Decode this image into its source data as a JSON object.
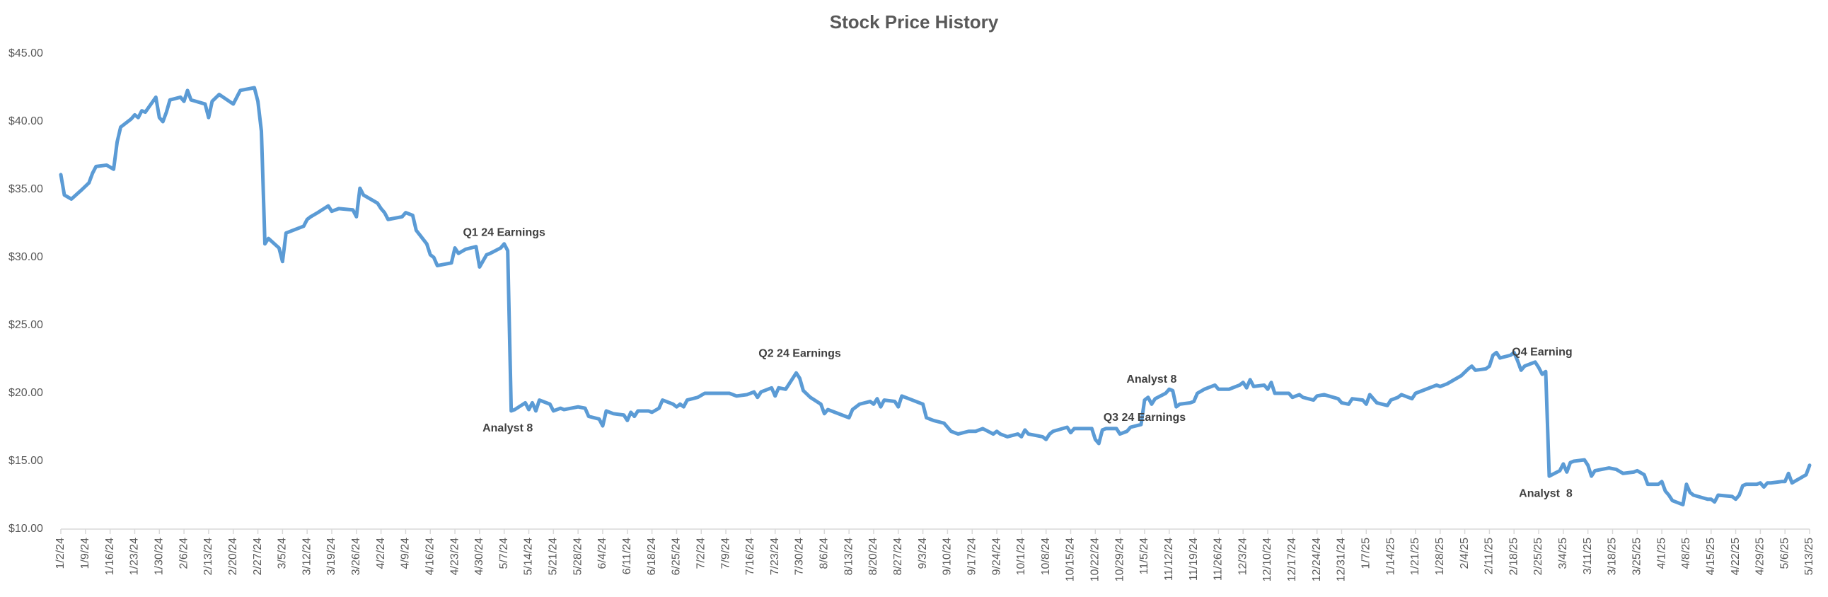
{
  "chart_data": {
    "type": "line",
    "title": "Stock Price History",
    "color": "#5b9bd5",
    "xlim": [
      "2024-01-02",
      "2025-05-13"
    ],
    "ylim": [
      10,
      45
    ],
    "yticks": [
      {
        "value": 10,
        "label": "$10.00"
      },
      {
        "value": 15,
        "label": "$15.00"
      },
      {
        "value": 20,
        "label": "$20.00"
      },
      {
        "value": 25,
        "label": "$25.00"
      },
      {
        "value": 30,
        "label": "$30.00"
      },
      {
        "value": 35,
        "label": "$35.00"
      },
      {
        "value": 40,
        "label": "$40.00"
      },
      {
        "value": 45,
        "label": "$45.00"
      }
    ],
    "xticks": [
      {
        "value": "2024-01-02",
        "label": "1/2/24"
      },
      {
        "value": "2024-01-09",
        "label": "1/9/24"
      },
      {
        "value": "2024-01-16",
        "label": "1/16/24"
      },
      {
        "value": "2024-01-23",
        "label": "1/23/24"
      },
      {
        "value": "2024-01-30",
        "label": "1/30/24"
      },
      {
        "value": "2024-02-06",
        "label": "2/6/24"
      },
      {
        "value": "2024-02-13",
        "label": "2/13/24"
      },
      {
        "value": "2024-02-20",
        "label": "2/20/24"
      },
      {
        "value": "2024-02-27",
        "label": "2/27/24"
      },
      {
        "value": "2024-03-05",
        "label": "3/5/24"
      },
      {
        "value": "2024-03-12",
        "label": "3/12/24"
      },
      {
        "value": "2024-03-19",
        "label": "3/19/24"
      },
      {
        "value": "2024-03-26",
        "label": "3/26/24"
      },
      {
        "value": "2024-04-02",
        "label": "4/2/24"
      },
      {
        "value": "2024-04-09",
        "label": "4/9/24"
      },
      {
        "value": "2024-04-16",
        "label": "4/16/24"
      },
      {
        "value": "2024-04-23",
        "label": "4/23/24"
      },
      {
        "value": "2024-04-30",
        "label": "4/30/24"
      },
      {
        "value": "2024-05-07",
        "label": "5/7/24"
      },
      {
        "value": "2024-05-14",
        "label": "5/14/24"
      },
      {
        "value": "2024-05-21",
        "label": "5/21/24"
      },
      {
        "value": "2024-05-28",
        "label": "5/28/24"
      },
      {
        "value": "2024-06-04",
        "label": "6/4/24"
      },
      {
        "value": "2024-06-11",
        "label": "6/11/24"
      },
      {
        "value": "2024-06-18",
        "label": "6/18/24"
      },
      {
        "value": "2024-06-25",
        "label": "6/25/24"
      },
      {
        "value": "2024-07-02",
        "label": "7/2/24"
      },
      {
        "value": "2024-07-09",
        "label": "7/9/24"
      },
      {
        "value": "2024-07-16",
        "label": "7/16/24"
      },
      {
        "value": "2024-07-23",
        "label": "7/23/24"
      },
      {
        "value": "2024-07-30",
        "label": "7/30/24"
      },
      {
        "value": "2024-08-06",
        "label": "8/6/24"
      },
      {
        "value": "2024-08-13",
        "label": "8/13/24"
      },
      {
        "value": "2024-08-20",
        "label": "8/20/24"
      },
      {
        "value": "2024-08-27",
        "label": "8/27/24"
      },
      {
        "value": "2024-09-03",
        "label": "9/3/24"
      },
      {
        "value": "2024-09-10",
        "label": "9/10/24"
      },
      {
        "value": "2024-09-17",
        "label": "9/17/24"
      },
      {
        "value": "2024-09-24",
        "label": "9/24/24"
      },
      {
        "value": "2024-10-01",
        "label": "10/1/24"
      },
      {
        "value": "2024-10-08",
        "label": "10/8/24"
      },
      {
        "value": "2024-10-15",
        "label": "10/15/24"
      },
      {
        "value": "2024-10-22",
        "label": "10/22/24"
      },
      {
        "value": "2024-10-29",
        "label": "10/29/24"
      },
      {
        "value": "2024-11-05",
        "label": "11/5/24"
      },
      {
        "value": "2024-11-12",
        "label": "11/12/24"
      },
      {
        "value": "2024-11-19",
        "label": "11/19/24"
      },
      {
        "value": "2024-11-26",
        "label": "11/26/24"
      },
      {
        "value": "2024-12-03",
        "label": "12/3/24"
      },
      {
        "value": "2024-12-10",
        "label": "12/10/24"
      },
      {
        "value": "2024-12-17",
        "label": "12/17/24"
      },
      {
        "value": "2024-12-24",
        "label": "12/24/24"
      },
      {
        "value": "2024-12-31",
        "label": "12/31/24"
      },
      {
        "value": "2025-01-07",
        "label": "1/7/25"
      },
      {
        "value": "2025-01-14",
        "label": "1/14/25"
      },
      {
        "value": "2025-01-21",
        "label": "1/21/25"
      },
      {
        "value": "2025-01-28",
        "label": "1/28/25"
      },
      {
        "value": "2025-02-04",
        "label": "2/4/25"
      },
      {
        "value": "2025-02-11",
        "label": "2/11/25"
      },
      {
        "value": "2025-02-18",
        "label": "2/18/25"
      },
      {
        "value": "2025-02-25",
        "label": "2/25/25"
      },
      {
        "value": "2025-03-04",
        "label": "3/4/25"
      },
      {
        "value": "2025-03-11",
        "label": "3/11/25"
      },
      {
        "value": "2025-03-18",
        "label": "3/18/25"
      },
      {
        "value": "2025-03-25",
        "label": "3/25/25"
      },
      {
        "value": "2025-04-01",
        "label": "4/1/25"
      },
      {
        "value": "2025-04-08",
        "label": "4/8/25"
      },
      {
        "value": "2025-04-15",
        "label": "4/15/25"
      },
      {
        "value": "2025-04-22",
        "label": "4/22/25"
      },
      {
        "value": "2025-04-29",
        "label": "4/29/25"
      },
      {
        "value": "2025-05-06",
        "label": "5/6/25"
      },
      {
        "value": "2025-05-13",
        "label": "5/13/25"
      }
    ],
    "x": [
      "2024-01-02",
      "2024-01-03",
      "2024-01-05",
      "2024-01-08",
      "2024-01-10",
      "2024-01-11",
      "2024-01-12",
      "2024-01-15",
      "2024-01-17",
      "2024-01-18",
      "2024-01-19",
      "2024-01-22",
      "2024-01-23",
      "2024-01-24",
      "2024-01-25",
      "2024-01-26",
      "2024-01-29",
      "2024-01-30",
      "2024-01-31",
      "2024-02-01",
      "2024-02-02",
      "2024-02-05",
      "2024-02-06",
      "2024-02-07",
      "2024-02-08",
      "2024-02-12",
      "2024-02-13",
      "2024-02-14",
      "2024-02-16",
      "2024-02-20",
      "2024-02-22",
      "2024-02-26",
      "2024-02-27",
      "2024-02-28",
      "2024-02-29",
      "2024-03-01",
      "2024-03-04",
      "2024-03-05",
      "2024-03-06",
      "2024-03-08",
      "2024-03-11",
      "2024-03-12",
      "2024-03-13",
      "2024-03-15",
      "2024-03-18",
      "2024-03-19",
      "2024-03-21",
      "2024-03-25",
      "2024-03-26",
      "2024-03-27",
      "2024-03-28",
      "2024-04-01",
      "2024-04-02",
      "2024-04-03",
      "2024-04-04",
      "2024-04-08",
      "2024-04-09",
      "2024-04-11",
      "2024-04-12",
      "2024-04-15",
      "2024-04-16",
      "2024-04-17",
      "2024-04-18",
      "2024-04-22",
      "2024-04-23",
      "2024-04-24",
      "2024-04-26",
      "2024-04-29",
      "2024-04-30",
      "2024-05-02",
      "2024-05-03",
      "2024-05-06",
      "2024-05-07",
      "2024-05-08",
      "2024-05-09",
      "2024-05-10",
      "2024-05-13",
      "2024-05-14",
      "2024-05-15",
      "2024-05-16",
      "2024-05-17",
      "2024-05-20",
      "2024-05-21",
      "2024-05-23",
      "2024-05-24",
      "2024-05-28",
      "2024-05-30",
      "2024-05-31",
      "2024-06-03",
      "2024-06-04",
      "2024-06-05",
      "2024-06-07",
      "2024-06-10",
      "2024-06-11",
      "2024-06-12",
      "2024-06-13",
      "2024-06-14",
      "2024-06-17",
      "2024-06-18",
      "2024-06-20",
      "2024-06-21",
      "2024-06-24",
      "2024-06-25",
      "2024-06-26",
      "2024-06-27",
      "2024-06-28",
      "2024-07-01",
      "2024-07-03",
      "2024-07-08",
      "2024-07-10",
      "2024-07-12",
      "2024-07-15",
      "2024-07-17",
      "2024-07-18",
      "2024-07-19",
      "2024-07-22",
      "2024-07-23",
      "2024-07-24",
      "2024-07-26",
      "2024-07-29",
      "2024-07-30",
      "2024-07-31",
      "2024-08-02",
      "2024-08-05",
      "2024-08-06",
      "2024-08-07",
      "2024-08-09",
      "2024-08-12",
      "2024-08-13",
      "2024-08-14",
      "2024-08-16",
      "2024-08-19",
      "2024-08-20",
      "2024-08-21",
      "2024-08-22",
      "2024-08-23",
      "2024-08-26",
      "2024-08-27",
      "2024-08-28",
      "2024-08-30",
      "2024-09-03",
      "2024-09-04",
      "2024-09-06",
      "2024-09-09",
      "2024-09-10",
      "2024-09-11",
      "2024-09-13",
      "2024-09-16",
      "2024-09-18",
      "2024-09-20",
      "2024-09-23",
      "2024-09-24",
      "2024-09-25",
      "2024-09-27",
      "2024-09-30",
      "2024-10-01",
      "2024-10-02",
      "2024-10-03",
      "2024-10-07",
      "2024-10-08",
      "2024-10-09",
      "2024-10-10",
      "2024-10-14",
      "2024-10-15",
      "2024-10-16",
      "2024-10-21",
      "2024-10-22",
      "2024-10-23",
      "2024-10-24",
      "2024-10-25",
      "2024-10-28",
      "2024-10-29",
      "2024-10-31",
      "2024-11-01",
      "2024-11-04",
      "2024-11-05",
      "2024-11-06",
      "2024-11-07",
      "2024-11-08",
      "2024-11-11",
      "2024-11-12",
      "2024-11-13",
      "2024-11-14",
      "2024-11-15",
      "2024-11-18",
      "2024-11-19",
      "2024-11-20",
      "2024-11-22",
      "2024-11-25",
      "2024-11-26",
      "2024-11-29",
      "2024-12-02",
      "2024-12-03",
      "2024-12-04",
      "2024-12-05",
      "2024-12-06",
      "2024-12-09",
      "2024-12-10",
      "2024-12-11",
      "2024-12-12",
      "2024-12-16",
      "2024-12-17",
      "2024-12-19",
      "2024-12-20",
      "2024-12-23",
      "2024-12-24",
      "2024-12-26",
      "2024-12-30",
      "2024-12-31",
      "2025-01-02",
      "2025-01-03",
      "2025-01-06",
      "2025-01-07",
      "2025-01-08",
      "2025-01-10",
      "2025-01-13",
      "2025-01-14",
      "2025-01-16",
      "2025-01-17",
      "2025-01-20",
      "2025-01-21",
      "2025-01-24",
      "2025-01-27",
      "2025-01-28",
      "2025-01-30",
      "2025-02-03",
      "2025-02-05",
      "2025-02-06",
      "2025-02-07",
      "2025-02-10",
      "2025-02-11",
      "2025-02-12",
      "2025-02-13",
      "2025-02-14",
      "2025-02-17",
      "2025-02-18",
      "2025-02-19",
      "2025-02-20",
      "2025-02-21",
      "2025-02-24",
      "2025-02-25",
      "2025-02-26",
      "2025-02-27",
      "2025-02-28",
      "2025-03-03",
      "2025-03-04",
      "2025-03-05",
      "2025-03-06",
      "2025-03-07",
      "2025-03-10",
      "2025-03-11",
      "2025-03-12",
      "2025-03-13",
      "2025-03-17",
      "2025-03-19",
      "2025-03-21",
      "2025-03-24",
      "2025-03-25",
      "2025-03-27",
      "2025-03-28",
      "2025-03-31",
      "2025-04-01",
      "2025-04-02",
      "2025-04-03",
      "2025-04-04",
      "2025-04-07",
      "2025-04-08",
      "2025-04-09",
      "2025-04-10",
      "2025-04-14",
      "2025-04-15",
      "2025-04-16",
      "2025-04-17",
      "2025-04-21",
      "2025-04-22",
      "2025-04-23",
      "2025-04-24",
      "2025-04-25",
      "2025-04-28",
      "2025-04-29",
      "2025-04-30",
      "2025-05-01",
      "2025-05-02",
      "2025-05-05",
      "2025-05-06",
      "2025-05-07",
      "2025-05-08",
      "2025-05-12",
      "2025-05-13"
    ],
    "values": [
      36.1,
      34.6,
      34.3,
      35.0,
      35.5,
      36.2,
      36.7,
      36.8,
      36.5,
      38.5,
      39.6,
      40.2,
      40.5,
      40.3,
      40.8,
      40.7,
      41.8,
      40.3,
      40.0,
      40.7,
      41.6,
      41.8,
      41.5,
      42.3,
      41.6,
      41.3,
      40.3,
      41.5,
      42.0,
      41.3,
      42.3,
      42.5,
      41.5,
      39.3,
      31.0,
      31.4,
      30.7,
      29.7,
      31.8,
      32.0,
      32.3,
      32.8,
      33.0,
      33.3,
      33.8,
      33.4,
      33.6,
      33.5,
      33.0,
      35.1,
      34.6,
      34.0,
      33.6,
      33.3,
      32.8,
      33.0,
      33.3,
      33.1,
      32.0,
      31.0,
      30.2,
      30.0,
      29.4,
      29.6,
      30.7,
      30.3,
      30.6,
      30.8,
      29.3,
      30.2,
      30.3,
      30.7,
      31.0,
      30.5,
      18.7,
      18.8,
      19.3,
      18.8,
      19.3,
      18.7,
      19.5,
      19.2,
      18.7,
      18.9,
      18.8,
      19.0,
      18.9,
      18.3,
      18.1,
      17.6,
      18.7,
      18.5,
      18.4,
      18.0,
      18.6,
      18.3,
      18.7,
      18.7,
      18.6,
      18.9,
      19.5,
      19.2,
      19.0,
      19.2,
      19.0,
      19.5,
      19.7,
      20.0,
      20.0,
      20.0,
      19.8,
      19.9,
      20.1,
      19.7,
      20.1,
      20.4,
      19.8,
      20.4,
      20.3,
      21.5,
      21.1,
      20.2,
      19.7,
      19.2,
      18.5,
      18.8,
      18.6,
      18.3,
      18.2,
      18.8,
      19.2,
      19.4,
      19.2,
      19.6,
      19.0,
      19.5,
      19.4,
      19.0,
      19.8,
      19.6,
      19.2,
      18.2,
      18.0,
      17.8,
      17.5,
      17.2,
      17.0,
      17.2,
      17.2,
      17.4,
      17.0,
      17.2,
      17.0,
      16.8,
      17.0,
      16.8,
      17.3,
      17.0,
      16.8,
      16.6,
      17.0,
      17.2,
      17.5,
      17.1,
      17.4,
      17.4,
      16.6,
      16.3,
      17.3,
      17.4,
      17.4,
      17.0,
      17.2,
      17.5,
      17.7,
      19.5,
      19.7,
      19.2,
      19.6,
      20.0,
      20.3,
      20.2,
      19.0,
      19.2,
      19.3,
      19.4,
      20.0,
      20.3,
      20.6,
      20.3,
      20.3,
      20.6,
      20.8,
      20.4,
      21.0,
      20.5,
      20.6,
      20.3,
      20.8,
      20.0,
      20.0,
      19.7,
      19.9,
      19.7,
      19.5,
      19.8,
      19.9,
      19.6,
      19.3,
      19.2,
      19.6,
      19.5,
      19.2,
      19.9,
      19.3,
      19.1,
      19.5,
      19.7,
      19.9,
      19.6,
      20.0,
      20.3,
      20.6,
      20.5,
      20.7,
      21.3,
      21.8,
      22.0,
      21.7,
      21.8,
      22.0,
      22.8,
      23.0,
      22.6,
      22.8,
      23.0,
      22.4,
      21.7,
      22.0,
      22.3,
      21.9,
      21.4,
      21.6,
      13.9,
      14.3,
      14.8,
      14.2,
      14.9,
      15.0,
      15.1,
      14.7,
      13.9,
      14.3,
      14.5,
      14.4,
      14.1,
      14.2,
      14.3,
      14.0,
      13.3,
      13.3,
      13.5,
      12.8,
      12.5,
      12.1,
      11.8,
      13.3,
      12.7,
      12.5,
      12.2,
      12.2,
      12.0,
      12.5,
      12.4,
      12.2,
      12.5,
      13.2,
      13.3,
      13.3,
      13.4,
      13.1,
      13.4,
      13.4,
      13.5,
      13.5,
      14.1,
      13.4,
      14.0,
      14.7
    ],
    "annotations": [
      {
        "text": "Q1 24 Earnings",
        "x": "2024-05-07",
        "y": 31.8
      },
      {
        "text": "Analyst 8",
        "x": "2024-05-08",
        "y": 17.4
      },
      {
        "text": "Q2 24 Earnings",
        "x": "2024-07-30",
        "y": 22.9
      },
      {
        "text": "Analyst 8",
        "x": "2024-11-07",
        "y": 21.0
      },
      {
        "text": "Q3 24 Earnings",
        "x": "2024-11-05",
        "y": 18.2
      },
      {
        "text": "Q4 Earning",
        "x": "2025-02-26",
        "y": 23.0
      },
      {
        "text": "Analyst  8",
        "x": "2025-02-27",
        "y": 12.6
      }
    ]
  }
}
